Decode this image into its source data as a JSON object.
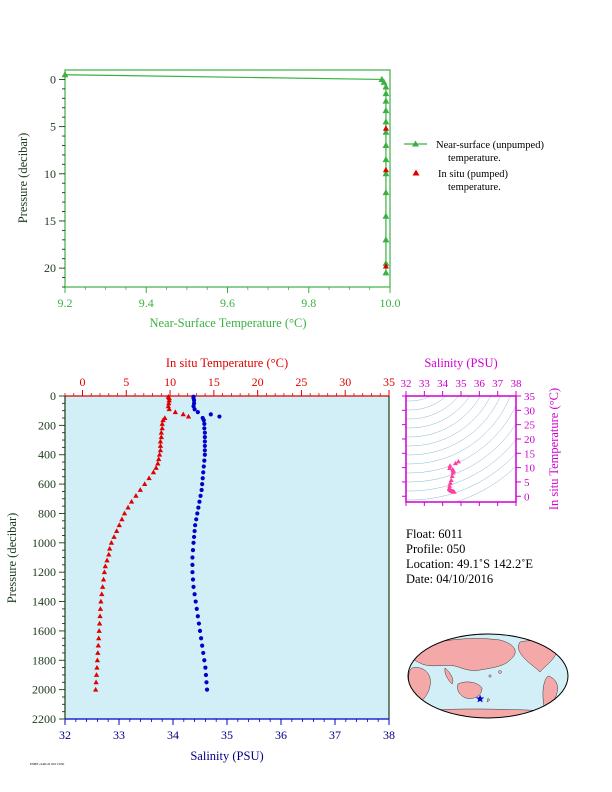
{
  "colors": {
    "green": "#3cb043",
    "red": "#e00000",
    "blue": "#0000c8",
    "magenta": "#d000d0",
    "pink": "#ff40a0",
    "navy": "#000080",
    "plot_bg": "#d2eff8",
    "axis_dark": "#1a3a1a"
  },
  "chart_data": [
    {
      "type": "line",
      "id": "near-surface",
      "xlabel": "Near-Surface Temperature (°C)",
      "ylabel": "Pressure (decibar)",
      "xlim": [
        9.2,
        10.0
      ],
      "ylim": [
        22,
        -1
      ],
      "x_ticks": [
        "9.2",
        "9.4",
        "9.6",
        "9.8",
        "10.0"
      ],
      "y_ticks": [
        "0",
        "5",
        "10",
        "15",
        "20"
      ],
      "legend": {
        "placement": "right",
        "entries": [
          {
            "line1": "Near-surface (unpumped)",
            "line2": "temperature."
          },
          {
            "line1": "In situ (pumped)",
            "line2": "temperature."
          }
        ]
      },
      "series": [
        {
          "marker": "triangle",
          "x": [
            9.2,
            9.98,
            9.985,
            9.99,
            9.99,
            9.99,
            9.99,
            9.99,
            9.99,
            9.99,
            9.99,
            9.99,
            9.99,
            9.99,
            9.99,
            9.99,
            9.99
          ],
          "y": [
            -0.5,
            0,
            0.3,
            0.8,
            1.5,
            2.3,
            3.3,
            4.5,
            5.6,
            7.0,
            8.5,
            10.0,
            12.0,
            14.5,
            17.0,
            19.5,
            20.5
          ]
        },
        {
          "marker": "triangle",
          "x": [
            9.99,
            9.99,
            9.99
          ],
          "y": [
            5.2,
            9.6,
            19.8
          ]
        }
      ]
    },
    {
      "type": "scatter",
      "id": "profile",
      "xlabel_top": "In situ Temperature (°C)",
      "xlabel_bottom": "Salinity (PSU)",
      "ylabel": "Pressure (decibar)",
      "temp_lim": [
        -2,
        35
      ],
      "sal_lim": [
        32,
        38
      ],
      "ylim": [
        2200,
        0
      ],
      "temp_ticks": [
        "0",
        "5",
        "10",
        "15",
        "20",
        "25",
        "30",
        "35"
      ],
      "sal_ticks": [
        "32",
        "33",
        "34",
        "35",
        "36",
        "37",
        "38"
      ],
      "y_ticks": [
        "0",
        "200",
        "400",
        "600",
        "800",
        "1000",
        "1200",
        "1400",
        "1600",
        "1800",
        "2000",
        "2200"
      ],
      "series": [
        {
          "marker": "triangle",
          "pressure": [
            5,
            15,
            30,
            50,
            70,
            90,
            110,
            125,
            140,
            150,
            165,
            190,
            220,
            250,
            280,
            310,
            340,
            370,
            400,
            430,
            460,
            490,
            520,
            560,
            600,
            640,
            680,
            720,
            760,
            800,
            840,
            880,
            920,
            960,
            1000,
            1040,
            1080,
            1120,
            1160,
            1200,
            1250,
            1300,
            1350,
            1400,
            1450,
            1500,
            1550,
            1600,
            1650,
            1700,
            1750,
            1800,
            1850,
            1900,
            1950,
            2000
          ],
          "temperature": [
            9.8,
            9.9,
            9.9,
            9.85,
            9.8,
            9.9,
            10.6,
            11.5,
            12.1,
            9.4,
            9.2,
            9.1,
            9.1,
            9.0,
            9.0,
            8.9,
            8.9,
            8.9,
            8.8,
            8.7,
            8.6,
            8.4,
            8.1,
            7.6,
            7.1,
            6.6,
            6.1,
            5.6,
            5.2,
            4.8,
            4.5,
            4.2,
            3.9,
            3.6,
            3.3,
            3.1,
            3.0,
            2.8,
            2.6,
            2.5,
            2.4,
            2.3,
            2.2,
            2.1,
            2.05,
            2.0,
            1.95,
            1.9,
            1.85,
            1.8,
            1.75,
            1.7,
            1.65,
            1.6,
            1.55,
            1.5
          ]
        },
        {
          "marker": "circle",
          "pressure": [
            5,
            15,
            30,
            50,
            70,
            90,
            110,
            125,
            140,
            150,
            165,
            190,
            220,
            250,
            280,
            310,
            340,
            370,
            400,
            440,
            480,
            520,
            560,
            600,
            640,
            680,
            720,
            760,
            800,
            840,
            880,
            920,
            960,
            1000,
            1050,
            1100,
            1150,
            1200,
            1250,
            1300,
            1350,
            1400,
            1450,
            1500,
            1550,
            1600,
            1650,
            1700,
            1750,
            1800,
            1850,
            1900,
            1950,
            2000
          ],
          "salinity": [
            34.38,
            34.38,
            34.39,
            34.39,
            34.38,
            34.4,
            34.46,
            34.7,
            34.86,
            34.55,
            34.57,
            34.58,
            34.58,
            34.59,
            34.59,
            34.59,
            34.59,
            34.59,
            34.59,
            34.58,
            34.57,
            34.56,
            34.55,
            34.54,
            34.53,
            34.51,
            34.49,
            34.47,
            34.45,
            34.43,
            34.41,
            34.4,
            34.39,
            34.38,
            34.37,
            34.36,
            34.36,
            34.36,
            34.37,
            34.38,
            34.4,
            34.42,
            34.44,
            34.46,
            34.48,
            34.5,
            34.52,
            34.54,
            34.56,
            34.58,
            34.6,
            34.61,
            34.62,
            34.63
          ]
        }
      ]
    },
    {
      "type": "scatter",
      "id": "ts-diagram",
      "xlabel": "Salinity (PSU)",
      "ylabel": "In situ Temperature (°C)",
      "xlim": [
        32,
        38
      ],
      "ylim": [
        -2,
        35
      ],
      "x_ticks": [
        "32",
        "33",
        "34",
        "35",
        "36",
        "37",
        "38"
      ],
      "y_ticks": [
        "0",
        "5",
        "10",
        "15",
        "20",
        "25",
        "30",
        "35"
      ],
      "points": {
        "salinity": [
          34.38,
          34.4,
          34.7,
          34.86,
          34.55,
          34.58,
          34.59,
          34.56,
          34.52,
          34.47,
          34.42,
          34.38,
          34.36,
          34.37,
          34.4,
          34.45,
          34.5,
          34.55,
          34.6,
          34.63
        ],
        "temperature": [
          9.8,
          10.6,
          11.5,
          12.1,
          9.3,
          9.0,
          8.8,
          8.2,
          7.0,
          5.6,
          4.6,
          3.6,
          2.8,
          2.5,
          2.2,
          2.0,
          1.8,
          1.7,
          1.6,
          1.5
        ]
      }
    }
  ],
  "info": {
    "float": "Float:  6011",
    "profile": "Profile:  050",
    "location": "Location:  49.1˚S  142.2˚E",
    "date": "Date:  04/10/2016"
  },
  "map": {
    "marker": "float-position",
    "lon": 142.2,
    "lat": -49.1
  },
  "footer": {
    "stamp": "PMEL/ARGO 6011/050"
  }
}
